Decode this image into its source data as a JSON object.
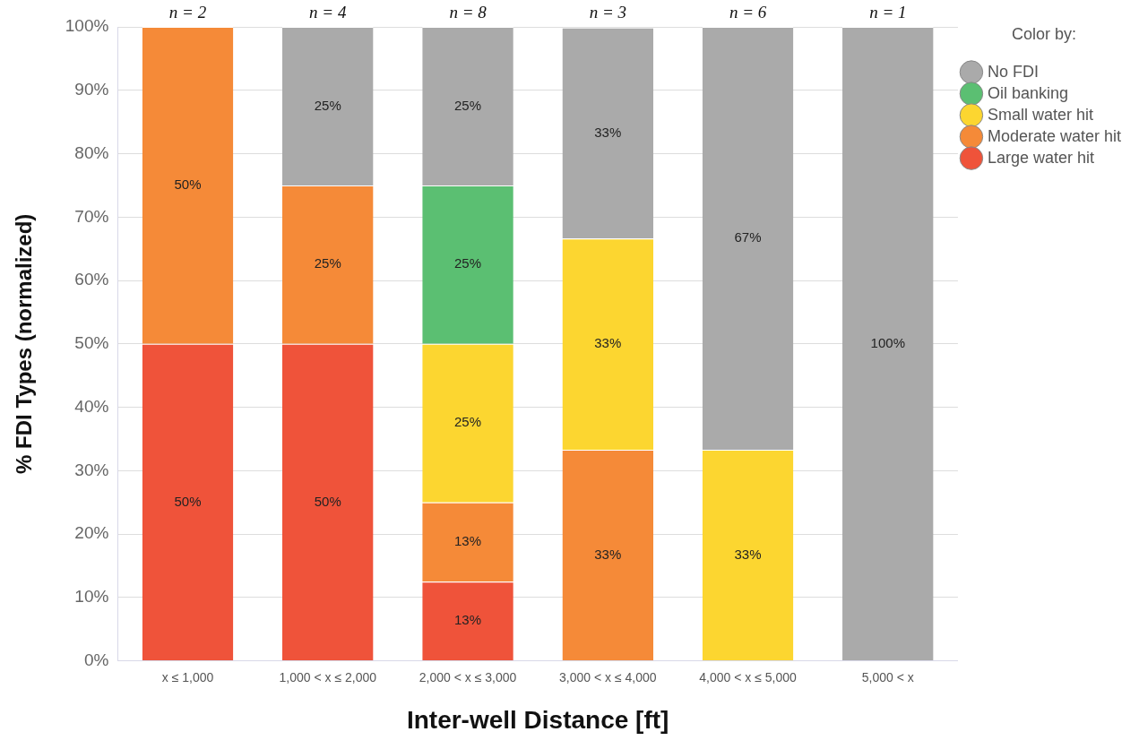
{
  "chart_data": {
    "type": "bar",
    "stacked": true,
    "xlabel": "Inter-well Distance [ft]",
    "ylabel": "% FDI Types (normalized)",
    "legend_title": "Color by:",
    "categories": [
      "x ≤ 1,000",
      "1,000 < x ≤ 2,000",
      "2,000 < x ≤ 3,000",
      "3,000 < x ≤ 4,000",
      "4,000 < x ≤ 5,000",
      "5,000 < x"
    ],
    "series": [
      {
        "name": "Large water hit",
        "color": "#ef533a",
        "values": [
          50,
          50,
          12.5,
          null,
          null,
          null
        ],
        "value_labels": [
          "50%",
          "50%",
          "13%",
          null,
          null,
          null
        ]
      },
      {
        "name": "Moderate water hit",
        "color": "#f58a38",
        "values": [
          50,
          25,
          12.5,
          33.3,
          null,
          null
        ],
        "value_labels": [
          "50%",
          "25%",
          "13%",
          "33%",
          null,
          null
        ]
      },
      {
        "name": "Small water hit",
        "color": "#fcd630",
        "values": [
          null,
          null,
          25,
          33.3,
          33.3,
          null
        ],
        "value_labels": [
          null,
          null,
          "25%",
          "33%",
          "33%",
          null
        ]
      },
      {
        "name": "Oil banking",
        "color": "#5bbf72",
        "values": [
          null,
          null,
          25,
          null,
          null,
          null
        ],
        "value_labels": [
          null,
          null,
          "25%",
          null,
          null,
          null
        ]
      },
      {
        "name": "No FDI",
        "color": "#aaaaaa",
        "values": [
          null,
          25,
          25,
          33.3,
          66.7,
          100
        ],
        "value_labels": [
          null,
          "25%",
          "25%",
          "33%",
          "67%",
          "100%"
        ]
      }
    ],
    "ylim": [
      0,
      100
    ],
    "yticks": [
      {
        "value": 0,
        "label": "0%"
      },
      {
        "value": 10,
        "label": "10%"
      },
      {
        "value": 20,
        "label": "20%"
      },
      {
        "value": 30,
        "label": "30%"
      },
      {
        "value": 40,
        "label": "40%"
      },
      {
        "value": 50,
        "label": "50%"
      },
      {
        "value": 60,
        "label": "60%"
      },
      {
        "value": 70,
        "label": "70%"
      },
      {
        "value": 80,
        "label": "80%"
      },
      {
        "value": 90,
        "label": "90%"
      },
      {
        "value": 100,
        "label": "100%"
      }
    ],
    "grid": "y",
    "legend": "top right",
    "annotations": [
      {
        "text": "n = 2",
        "x": "x ≤ 1,000",
        "y": 100
      },
      {
        "text": "n = 4",
        "x": "1,000 < x ≤ 2,000",
        "y": 100
      },
      {
        "text": "n = 8",
        "x": "2,000 < x ≤ 3,000",
        "y": 100
      },
      {
        "text": "n = 3",
        "x": "3,000 < x ≤ 4,000",
        "y": 100
      },
      {
        "text": "n = 6",
        "x": "4,000 < x ≤ 5,000",
        "y": 100
      },
      {
        "text": "n = 1",
        "x": "5,000 < x",
        "y": 100
      }
    ]
  }
}
